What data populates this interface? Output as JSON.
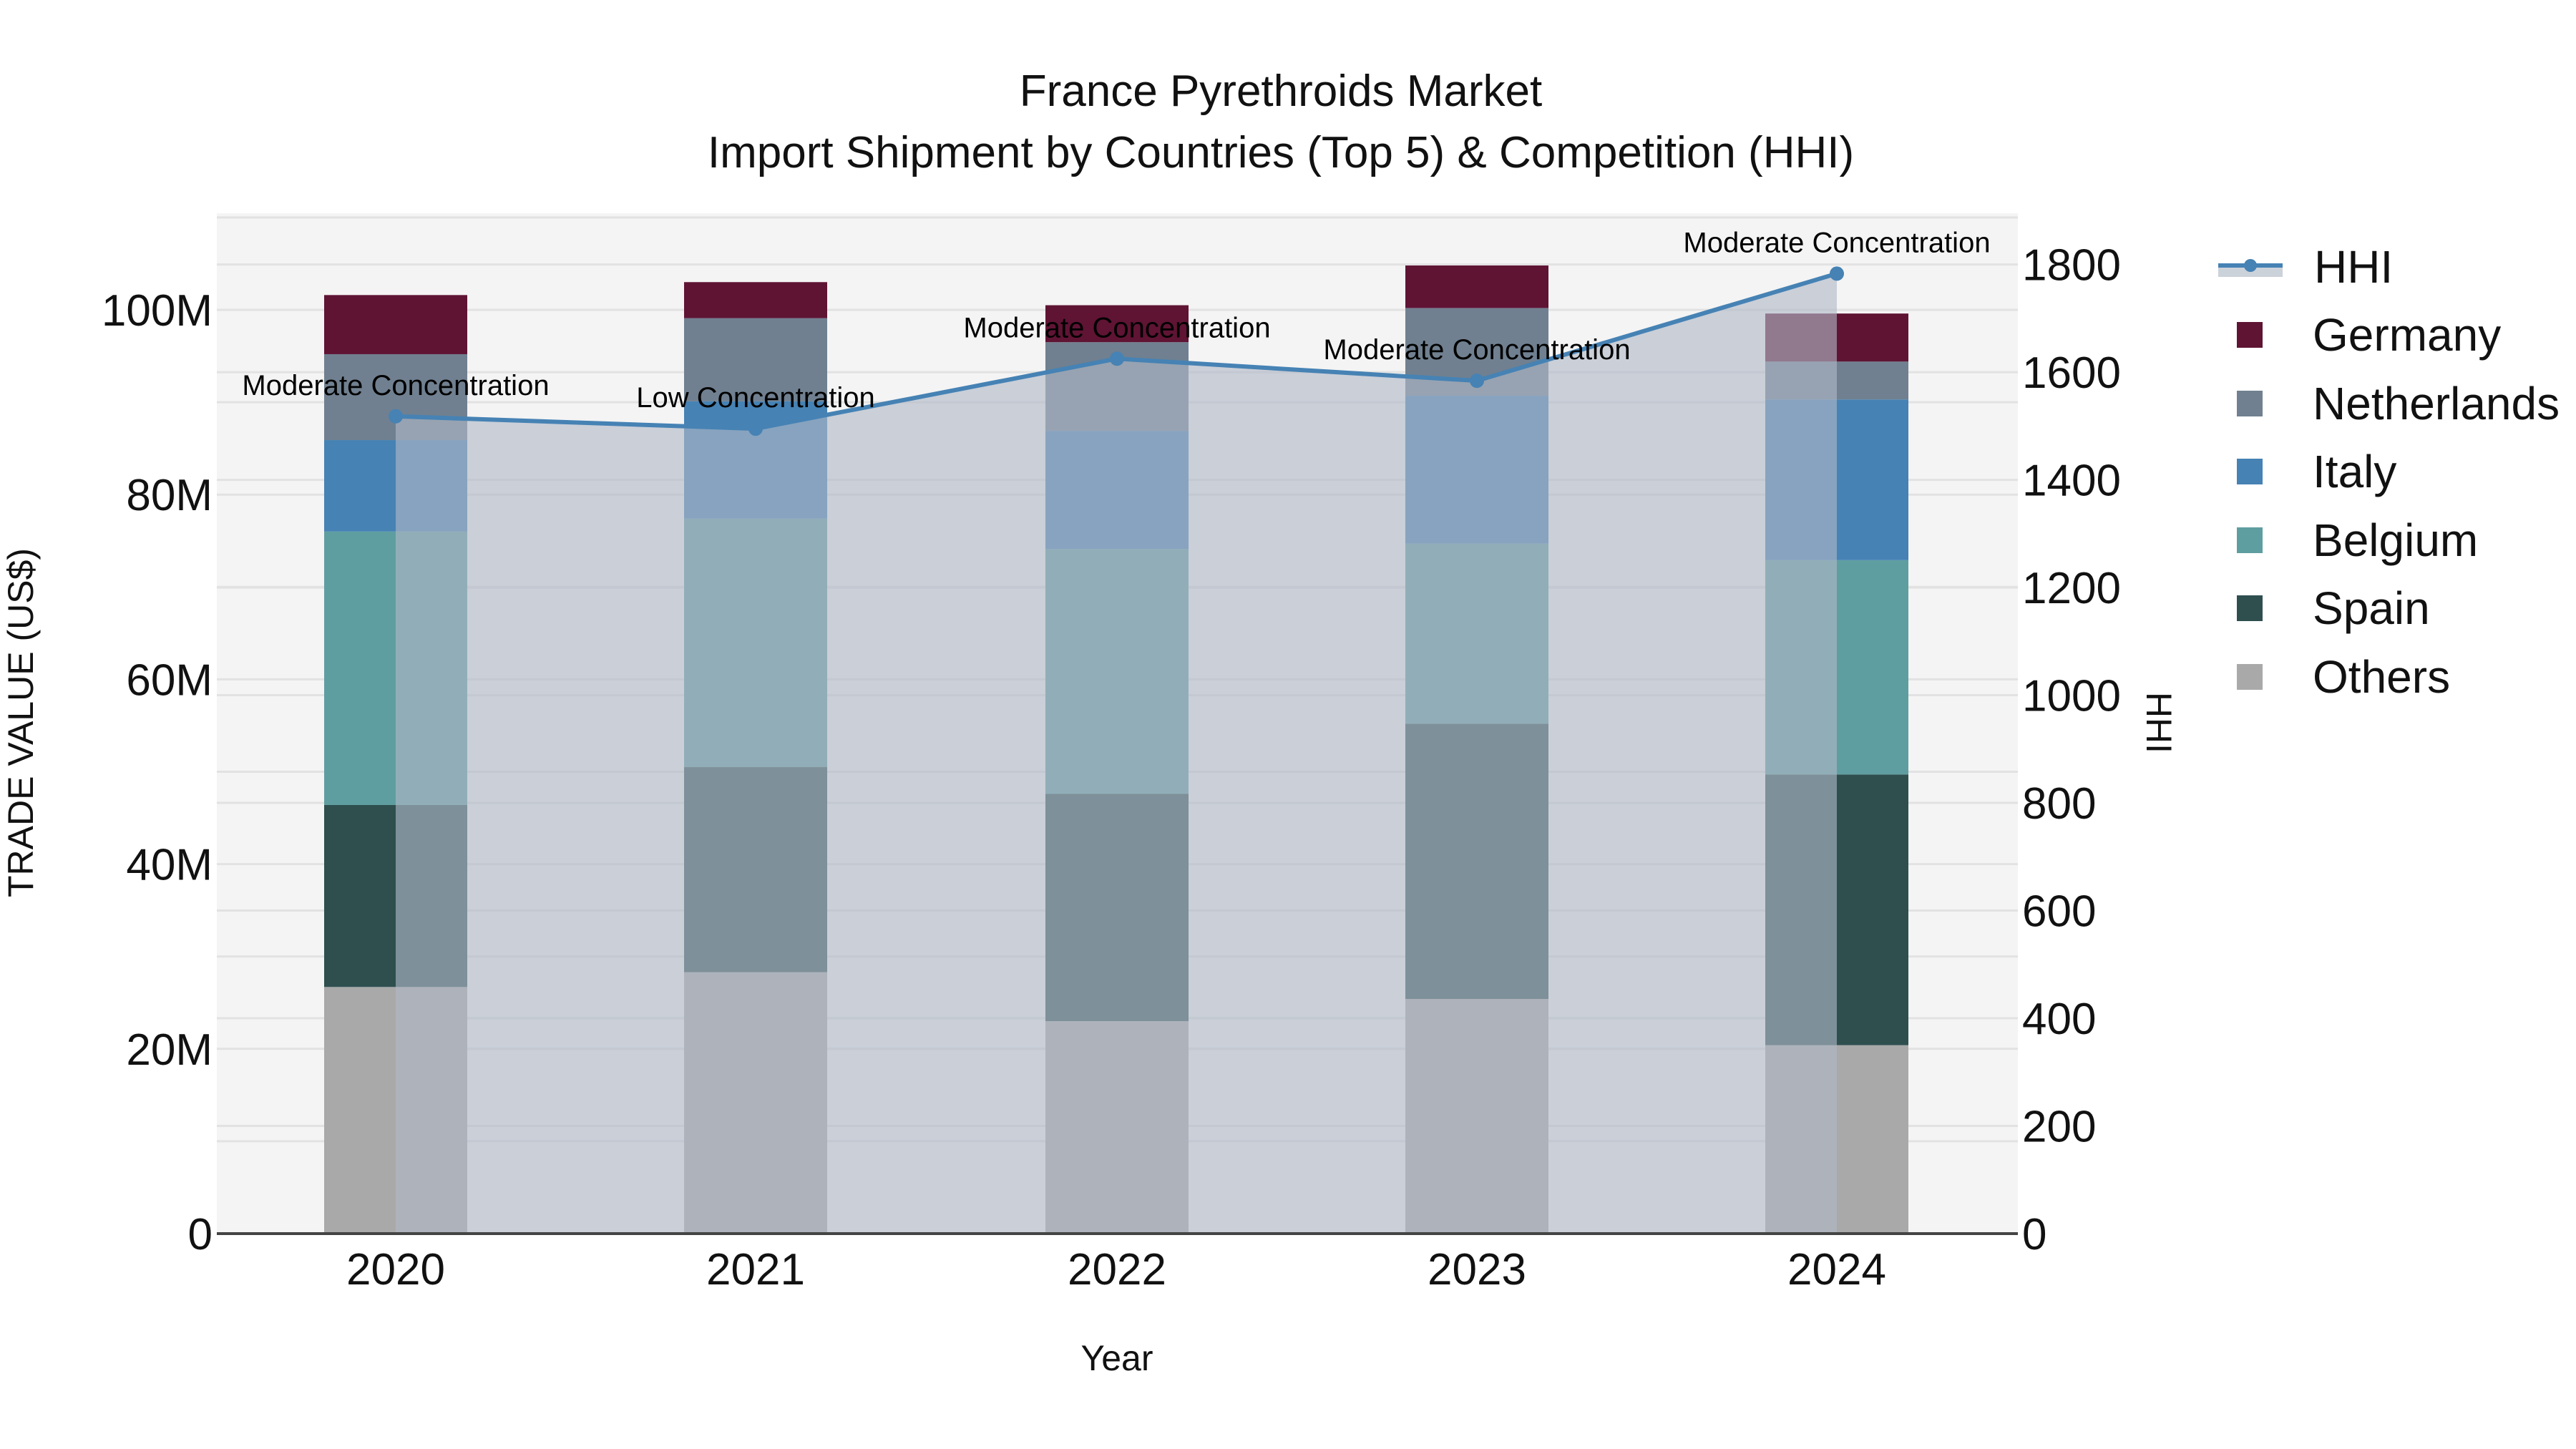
{
  "title": {
    "line1": "France Pyrethroids Market",
    "line2": "Import Shipment by Countries (Top 5) & Competition (HHI)"
  },
  "axes": {
    "x_label": "Year",
    "y_left_label": "TRADE VALUE (US$)",
    "y_right_label": "HHI",
    "y_left_ticks": [
      "0",
      "20M",
      "40M",
      "60M",
      "80M",
      "100M"
    ],
    "y_right_ticks": [
      "0",
      "200",
      "400",
      "600",
      "800",
      "1000",
      "1200",
      "1400",
      "1600",
      "1800"
    ]
  },
  "legend": [
    {
      "name": "HHI",
      "type": "line"
    },
    {
      "name": "Germany",
      "color": "#5f1434"
    },
    {
      "name": "Netherlands",
      "color": "#708090"
    },
    {
      "name": "Italy",
      "color": "#4682b4"
    },
    {
      "name": "Belgium",
      "color": "#5f9ea0"
    },
    {
      "name": "Spain",
      "color": "#2f4f4f"
    },
    {
      "name": "Others",
      "color": "#a9a9a9"
    }
  ],
  "colors": {
    "hhi_line": "#4682b4",
    "hhi_fill": "rgba(176,184,198,0.62)",
    "plot_bg": "#f4f4f4",
    "grid": "#e2e2e2"
  },
  "chart_data": {
    "type": "bar",
    "stacked": true,
    "title": "France Pyrethroids Market — Import Shipment by Countries (Top 5) & Competition (HHI)",
    "xlabel": "Year",
    "ylabel": "TRADE VALUE (US$)",
    "y2label": "HHI",
    "categories": [
      "2020",
      "2021",
      "2022",
      "2023",
      "2024"
    ],
    "ylim": [
      0,
      110400000
    ],
    "y2lim": [
      0,
      1895
    ],
    "series": [
      {
        "name": "Others",
        "color": "#a9a9a9",
        "values": [
          26.7,
          28.3,
          23.0,
          25.4,
          20.4
        ]
      },
      {
        "name": "Spain",
        "color": "#2f4f4f",
        "values": [
          19.7,
          22.2,
          24.6,
          29.8,
          29.3
        ]
      },
      {
        "name": "Belgium",
        "color": "#5f9ea0",
        "values": [
          29.6,
          26.9,
          26.5,
          19.5,
          23.2
        ]
      },
      {
        "name": "Italy",
        "color": "#4682b4",
        "values": [
          9.9,
          12.7,
          12.8,
          16.0,
          17.4
        ]
      },
      {
        "name": "Netherlands",
        "color": "#708090",
        "values": [
          9.3,
          9.0,
          9.6,
          9.5,
          4.1
        ]
      },
      {
        "name": "Germany",
        "color": "#5f1434",
        "values": [
          6.4,
          3.9,
          4.0,
          4.6,
          5.2
        ]
      }
    ],
    "units": "million US$",
    "line_series": {
      "name": "HHI",
      "axis": "right",
      "values": [
        1518,
        1495,
        1625,
        1584,
        1783
      ],
      "annotations": [
        "Moderate Concentration",
        "Low Concentration",
        "Moderate Concentration",
        "Moderate Concentration",
        "Moderate Concentration"
      ]
    },
    "legend_position": "right",
    "grid": true
  }
}
